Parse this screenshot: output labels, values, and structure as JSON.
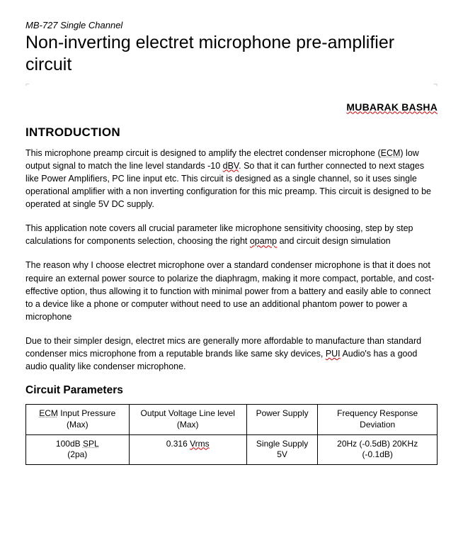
{
  "header": {
    "subtitle": "MB-727 Single Channel",
    "title": "Non-inverting electret microphone pre-amplifier circuit",
    "author": "MUBARAK BASHA",
    "corner_left": "⌐",
    "corner_right": "¬"
  },
  "intro": {
    "heading": "INTRODUCTION",
    "p1_a": "This microphone preamp circuit is designed to amplify the electret condenser microphone (",
    "p1_ecm": "ECM",
    "p1_b": ") low output signal to match the line level standards -10 ",
    "p1_dbv": "dBV",
    "p1_c": ". So that it can further connected to next stages like Power Amplifiers, PC line input etc. This circuit is designed as a single channel, so it uses single operational amplifier with a non inverting configuration for this mic preamp. This circuit is designed to be operated at single 5V DC supply.",
    "p2_a": "This application note covers all crucial parameter like microphone sensitivity choosing, step by step calculations for components selection, choosing the right ",
    "p2_op": "opamp",
    "p2_b": " and circuit design simulation",
    "p3": "The reason why I choose electret microphone over a standard condenser microphone is that it does not require an external power source to polarize the diaphragm, making it more compact, portable, and cost-effective option, thus allowing it to function with minimal power from a battery and easily able to connect to a device like a phone or computer without need to use an additional phantom power to power a microphone",
    "p4_a": "Due to their simpler design, electret mics are generally more affordable to manufacture than standard condenser mics microphone from a reputable brands like same sky devices, ",
    "p4_pui": "PUI",
    "p4_b": " Audio's has a good audio quality like condenser microphone."
  },
  "table": {
    "heading": "Circuit Parameters",
    "headers": {
      "c1a": "ECM",
      "c1b": " Input Pressure (Max)",
      "c2": "Output Voltage Line level (Max)",
      "c3": "Power Supply",
      "c4": "Frequency Response Deviation"
    },
    "row": {
      "c1a": "100dB ",
      "c1spl": "SPL",
      "c1b": " (2pa)",
      "c2a": "0.316 ",
      "c2v": "Vrms",
      "c3": "Single Supply 5V",
      "c4": "20Hz (-0.5dB) 20KHz (-0.1dB)"
    }
  }
}
